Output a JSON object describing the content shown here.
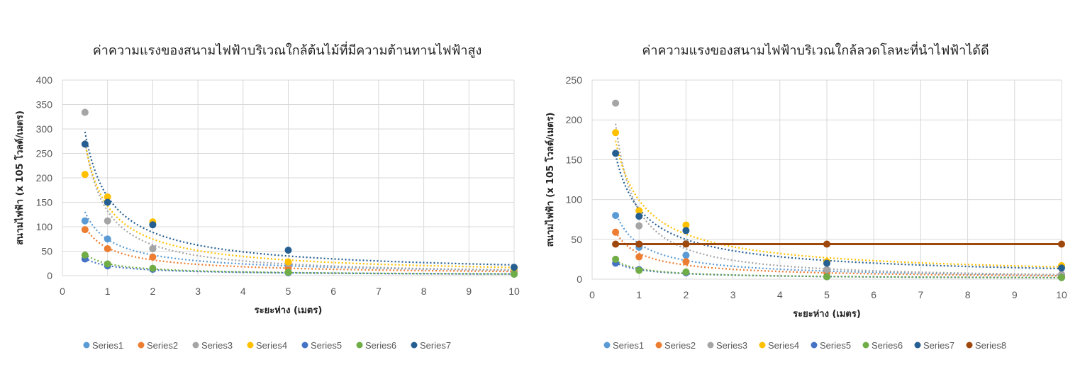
{
  "chart_data": [
    {
      "type": "scatter",
      "title": "ค่าความแรงของสนามไฟฟ้าบริเวณใกล้ต้นไม้ที่มีความต้านทานไฟฟ้าสูง",
      "xlabel": "ระยะห่าง (เมตร)",
      "ylabel": "สนามไฟฟ้า (x 105 โวลต์/เมตร)",
      "xlim": [
        0,
        10
      ],
      "ylim": [
        0,
        400
      ],
      "xticks": [
        "0",
        "1",
        "2",
        "3",
        "4",
        "5",
        "6",
        "7",
        "8",
        "9",
        "10"
      ],
      "yticks": [
        "0",
        "50",
        "100",
        "150",
        "200",
        "250",
        "300",
        "350",
        "400"
      ],
      "grid": true,
      "legend_position": "bottom",
      "trendline": "power",
      "series": [
        {
          "name": "Series1",
          "color": "#5b9bd5",
          "x": [
            0.5,
            1,
            2,
            5,
            10
          ],
          "y": [
            112,
            75,
            55,
            20,
            10
          ]
        },
        {
          "name": "Series2",
          "color": "#ed7d31",
          "x": [
            0.5,
            1,
            2,
            5,
            10
          ],
          "y": [
            94,
            55,
            38,
            15,
            8
          ]
        },
        {
          "name": "Series3",
          "color": "#a5a5a5",
          "x": [
            0.5,
            1,
            2,
            5,
            10
          ],
          "y": [
            334,
            112,
            55,
            25,
            12
          ]
        },
        {
          "name": "Series4",
          "color": "#ffc000",
          "x": [
            0.5,
            1,
            2,
            5,
            10
          ],
          "y": [
            207,
            161,
            110,
            28,
            15
          ]
        },
        {
          "name": "Series5",
          "color": "#4472c4",
          "x": [
            0.5,
            1,
            2,
            5,
            10
          ],
          "y": [
            34,
            20,
            13,
            6,
            3
          ]
        },
        {
          "name": "Series6",
          "color": "#70ad47",
          "x": [
            0.5,
            1,
            2,
            5,
            10
          ],
          "y": [
            42,
            24,
            15,
            7,
            3
          ]
        },
        {
          "name": "Series7",
          "color": "#255e91",
          "x": [
            0.5,
            1,
            2,
            5,
            10
          ],
          "y": [
            269,
            150,
            104,
            52,
            17
          ]
        }
      ]
    },
    {
      "type": "scatter",
      "title": "ค่าความแรงของสนามไฟฟ้าบริเวณใกล้ลวดโลหะที่นำไฟฟ้าได้ดี",
      "xlabel": "ระยะห่าง (เมตร)",
      "ylabel": "สนามไฟฟ้า (x 105 โวลต์/เมตร)",
      "xlim": [
        0,
        10
      ],
      "ylim": [
        0,
        250
      ],
      "xticks": [
        "0",
        "1",
        "2",
        "3",
        "4",
        "5",
        "6",
        "7",
        "8",
        "9",
        "10"
      ],
      "yticks": [
        "0",
        "50",
        "100",
        "150",
        "200",
        "250"
      ],
      "grid": true,
      "legend_position": "bottom",
      "trendline": "power",
      "series": [
        {
          "name": "Series1",
          "color": "#5b9bd5",
          "x": [
            0.5,
            1,
            2,
            5,
            10
          ],
          "y": [
            80,
            40,
            30,
            10,
            5
          ]
        },
        {
          "name": "Series2",
          "color": "#ed7d31",
          "x": [
            0.5,
            1,
            2,
            5,
            10
          ],
          "y": [
            59,
            28,
            22,
            8,
            4
          ]
        },
        {
          "name": "Series3",
          "color": "#a5a5a5",
          "x": [
            0.5,
            1,
            2,
            5,
            10
          ],
          "y": [
            221,
            67,
            45,
            12,
            6
          ]
        },
        {
          "name": "Series4",
          "color": "#ffc000",
          "x": [
            0.5,
            1,
            2,
            5,
            10
          ],
          "y": [
            184,
            86,
            68,
            22,
            17
          ]
        },
        {
          "name": "Series5",
          "color": "#4472c4",
          "x": [
            0.5,
            1,
            2,
            5,
            10
          ],
          "y": [
            20,
            12,
            8,
            3,
            2
          ]
        },
        {
          "name": "Series6",
          "color": "#70ad47",
          "x": [
            0.5,
            1,
            2,
            5,
            10
          ],
          "y": [
            25,
            11,
            9,
            3,
            2
          ]
        },
        {
          "name": "Series7",
          "color": "#255e91",
          "x": [
            0.5,
            1,
            2,
            5,
            10
          ],
          "y": [
            158,
            79,
            61,
            20,
            14
          ]
        },
        {
          "name": "Series8",
          "color": "#9e480e",
          "x": [
            0.5,
            1,
            2,
            5,
            10
          ],
          "y": [
            44,
            44,
            44,
            44,
            44
          ],
          "line": true
        }
      ]
    }
  ]
}
